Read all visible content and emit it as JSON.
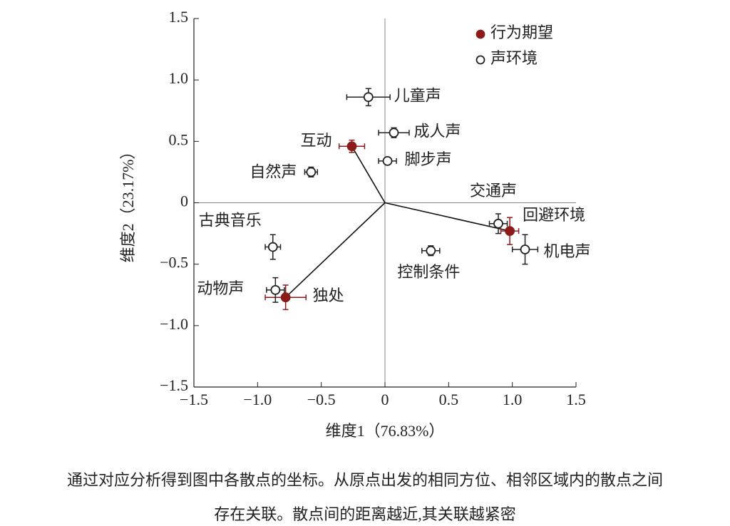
{
  "chart_data": {
    "type": "scatter",
    "xlabel": "维度1（76.83%）",
    "ylabel": "维度2（23.17%）",
    "xlim": [
      -1.5,
      1.5
    ],
    "ylim": [
      -1.5,
      1.5
    ],
    "xticks": [
      {
        "value": -1.5,
        "label": "−1.5"
      },
      {
        "value": -1.0,
        "label": "−1.0"
      },
      {
        "value": -0.5,
        "label": "−0.5"
      },
      0,
      0.5,
      {
        "value": 1.0,
        "label": "1.0"
      },
      1.5
    ],
    "yticks": [
      {
        "value": -1.5,
        "label": "−1.5"
      },
      {
        "value": -1.0,
        "label": "−1.0"
      },
      {
        "value": -0.5,
        "label": "−0.5"
      },
      0,
      0.5,
      {
        "value": 1.0,
        "label": "1.0"
      },
      1.5
    ],
    "series": [
      {
        "name": "行为期望",
        "color": "#8b1a1a",
        "filled": true,
        "lines_to_origin": true,
        "points": [
          {
            "label": "互动",
            "x": -0.26,
            "y": 0.46,
            "xerr": 0.1,
            "yerr": 0.05
          },
          {
            "label": "回避环境",
            "x": 0.98,
            "y": -0.23,
            "xerr": 0.07,
            "yerr": 0.11
          },
          {
            "label": "独处",
            "x": -0.78,
            "y": -0.77,
            "xerr": 0.16,
            "yerr": 0.1
          }
        ]
      },
      {
        "name": "声环境",
        "color": "#222222",
        "filled": false,
        "lines_to_origin": false,
        "points": [
          {
            "label": "儿童声",
            "x": -0.13,
            "y": 0.86,
            "xerr": 0.17,
            "yerr": 0.07
          },
          {
            "label": "成人声",
            "x": 0.07,
            "y": 0.57,
            "xerr": 0.12,
            "yerr": 0.04
          },
          {
            "label": "脚步声",
            "x": 0.02,
            "y": 0.34,
            "xerr": 0.07,
            "yerr": 0.02
          },
          {
            "label": "自然声",
            "x": -0.58,
            "y": 0.25,
            "xerr": 0.05,
            "yerr": 0.04
          },
          {
            "label": "交通声",
            "x": 0.89,
            "y": -0.17,
            "xerr": 0.07,
            "yerr": 0.08
          },
          {
            "label": "机电声",
            "x": 1.1,
            "y": -0.38,
            "xerr": 0.1,
            "yerr": 0.12
          },
          {
            "label": "控制条件",
            "x": 0.36,
            "y": -0.39,
            "xerr": 0.07,
            "yerr": 0.04
          },
          {
            "label": "古典音乐",
            "x": -0.88,
            "y": -0.36,
            "xerr": 0.06,
            "yerr": 0.1
          },
          {
            "label": "动物声",
            "x": -0.86,
            "y": -0.71,
            "xerr": 0.07,
            "yerr": 0.1
          }
        ]
      }
    ]
  },
  "caption": [
    "通过对应分析得到图中各散点的坐标。从原点出发的相同方位、相邻区域内的散点之间",
    "存在关联。散点间的距离越近,其关联越紧密"
  ]
}
